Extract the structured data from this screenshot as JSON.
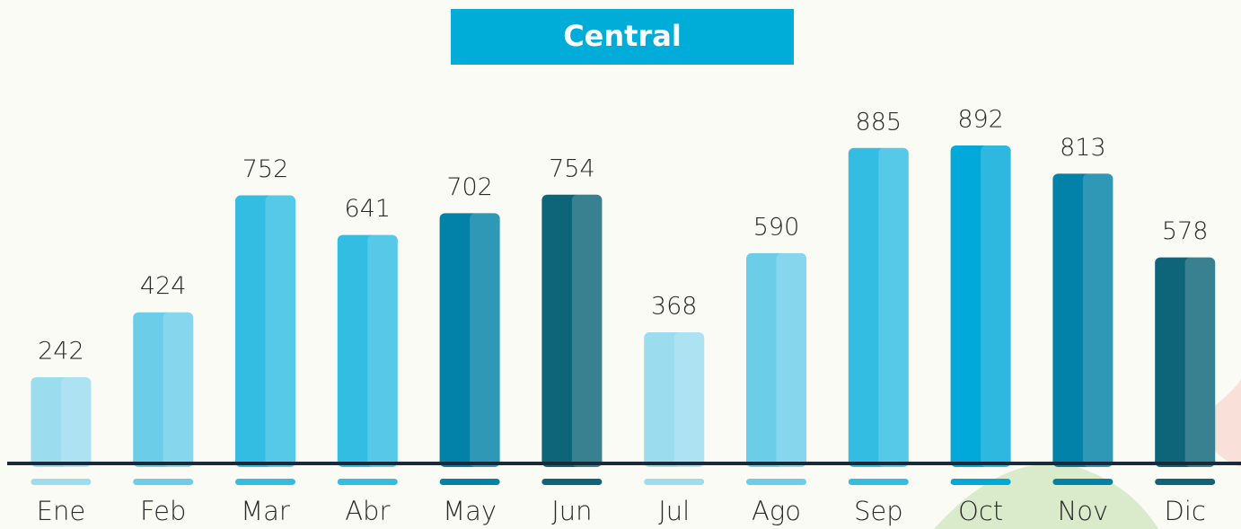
{
  "chart_data": {
    "type": "bar",
    "title": "Central",
    "categories": [
      "Ene",
      "Feb",
      "Mar",
      "Abr",
      "May",
      "Jun",
      "Jul",
      "Ago",
      "Sep",
      "Oct",
      "Nov",
      "Dic"
    ],
    "values": [
      242,
      424,
      752,
      641,
      702,
      754,
      368,
      590,
      885,
      892,
      813,
      578
    ],
    "colors": [
      "#9cdcef",
      "#6ccde9",
      "#33bde3",
      "#33bde3",
      "#0282a8",
      "#0e6579",
      "#9cdcef",
      "#6ccde9",
      "#33bde3",
      "#00a9d9",
      "#0282a8",
      "#0e6579"
    ],
    "title_color": "#00acd8"
  }
}
